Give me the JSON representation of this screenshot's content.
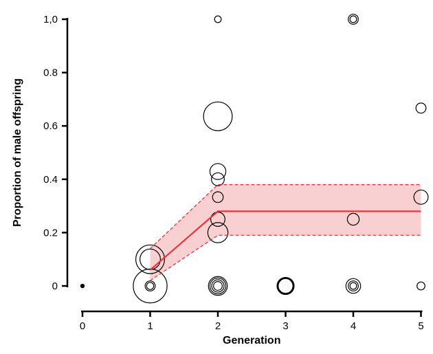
{
  "chart_data": {
    "type": "scatter",
    "xlabel": "Generation",
    "ylabel": "Proportion of male offspring",
    "xlim": [
      0,
      5
    ],
    "ylim": [
      0,
      1.0
    ],
    "x_ticks": [
      {
        "value": 0,
        "label": "0"
      },
      {
        "value": 1,
        "label": "1"
      },
      {
        "value": 2,
        "label": "2"
      },
      {
        "value": 3,
        "label": "3"
      },
      {
        "value": 4,
        "label": "4"
      },
      {
        "value": 5,
        "label": "5"
      }
    ],
    "y_ticks": [
      {
        "value": 0,
        "label": "0"
      },
      {
        "value": 0.2,
        "label": "0.2"
      },
      {
        "value": 0.4,
        "label": "0.4"
      },
      {
        "value": 0.6,
        "label": "0.6"
      },
      {
        "value": 0.8,
        "label": "0.8"
      },
      {
        "value": 1.0,
        "label": "1,0"
      }
    ],
    "grid": false,
    "legend": "none",
    "bubble_note": "bubble size proportional to sample weight (relative scale)",
    "points": [
      {
        "x": 0,
        "y": 0,
        "size": 0.1,
        "filled": true
      },
      {
        "x": 1,
        "y": 0,
        "size": 9
      },
      {
        "x": 1,
        "y": 0,
        "size": 0.8
      },
      {
        "x": 1,
        "y": 0,
        "size": 0.4
      },
      {
        "x": 1,
        "y": 0.1,
        "size": 6.5
      },
      {
        "x": 1,
        "y": 0.1,
        "size": 3.3
      },
      {
        "x": 2,
        "y": 0,
        "size": 2.8
      },
      {
        "x": 2,
        "y": 0,
        "size": 2.0
      },
      {
        "x": 2,
        "y": 0,
        "size": 1.2
      },
      {
        "x": 2,
        "y": 0,
        "size": 0.6
      },
      {
        "x": 2,
        "y": 0.2,
        "size": 3.2
      },
      {
        "x": 2,
        "y": 0.25,
        "size": 1.6
      },
      {
        "x": 2,
        "y": 0.333,
        "size": 0.9
      },
      {
        "x": 2,
        "y": 0.4,
        "size": 1.3
      },
      {
        "x": 2,
        "y": 0.429,
        "size": 2.0
      },
      {
        "x": 2,
        "y": 0.636,
        "size": 6.5
      },
      {
        "x": 2,
        "y": 1.0,
        "size": 0.35
      },
      {
        "x": 3,
        "y": 0,
        "size": 2.3
      },
      {
        "x": 3,
        "y": 0,
        "size": 2.0
      },
      {
        "x": 3,
        "y": 0,
        "size": 1.7
      },
      {
        "x": 4,
        "y": 0,
        "size": 1.7
      },
      {
        "x": 4,
        "y": 0,
        "size": 0.8
      },
      {
        "x": 4,
        "y": 0,
        "size": 0.35
      },
      {
        "x": 4,
        "y": 0.25,
        "size": 1.1
      },
      {
        "x": 4,
        "y": 1.0,
        "size": 0.8
      },
      {
        "x": 4,
        "y": 1.0,
        "size": 0.35
      },
      {
        "x": 5,
        "y": 0,
        "size": 0.5
      },
      {
        "x": 5,
        "y": 0.333,
        "size": 1.6
      },
      {
        "x": 5,
        "y": 0.667,
        "size": 0.8
      }
    ],
    "fit": {
      "color": "#e8343a",
      "band_color": "#f7c8c9",
      "x": [
        1,
        2,
        5
      ],
      "y": [
        0.06,
        0.28,
        0.28
      ],
      "lower": [
        0.02,
        0.19,
        0.19
      ],
      "upper": [
        0.14,
        0.38,
        0.38
      ]
    }
  }
}
